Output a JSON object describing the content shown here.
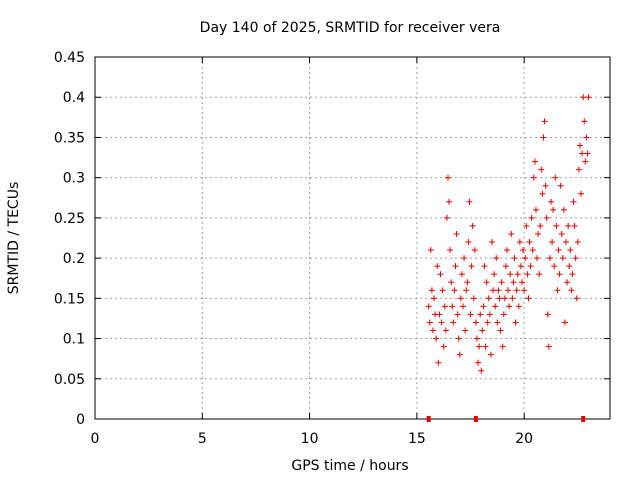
{
  "chart_data": {
    "type": "scatter",
    "title": "Day 140 of 2025, SRMTID for receiver vera",
    "xlabel": "GPS time / hours",
    "ylabel": "SRMTID / TECUs",
    "xlim": [
      0,
      24
    ],
    "ylim": [
      0,
      0.45
    ],
    "xticks": [
      0,
      5,
      10,
      15,
      20
    ],
    "yticks": [
      0,
      0.05,
      0.1,
      0.15,
      0.2,
      0.25,
      0.3,
      0.35,
      0.4,
      0.45
    ],
    "xtick_labels": [
      "0",
      "5",
      "10",
      "15",
      "20"
    ],
    "ytick_labels": [
      "0",
      "0.05",
      "0.1",
      "0.15",
      "0.2",
      "0.25",
      "0.3",
      "0.35",
      "0.4",
      "0.45"
    ],
    "grid": true,
    "marker": "+",
    "color": "#e00000",
    "zero_markers_x": [
      15.55,
      17.75,
      22.75
    ],
    "series": [
      {
        "name": "SRMTID",
        "points": [
          [
            15.55,
            0.14
          ],
          [
            15.6,
            0.12
          ],
          [
            15.65,
            0.21
          ],
          [
            15.7,
            0.16
          ],
          [
            15.75,
            0.11
          ],
          [
            15.8,
            0.15
          ],
          [
            15.85,
            0.13
          ],
          [
            15.9,
            0.1
          ],
          [
            15.95,
            0.19
          ],
          [
            16.0,
            0.07
          ],
          [
            16.05,
            0.13
          ],
          [
            16.1,
            0.18
          ],
          [
            16.15,
            0.12
          ],
          [
            16.2,
            0.16
          ],
          [
            16.25,
            0.09
          ],
          [
            16.3,
            0.14
          ],
          [
            16.35,
            0.11
          ],
          [
            16.4,
            0.25
          ],
          [
            16.45,
            0.3
          ],
          [
            16.5,
            0.27
          ],
          [
            16.55,
            0.21
          ],
          [
            16.6,
            0.17
          ],
          [
            16.65,
            0.14
          ],
          [
            16.7,
            0.12
          ],
          [
            16.75,
            0.16
          ],
          [
            16.8,
            0.19
          ],
          [
            16.85,
            0.23
          ],
          [
            16.9,
            0.13
          ],
          [
            16.95,
            0.1
          ],
          [
            17.0,
            0.08
          ],
          [
            17.05,
            0.15
          ],
          [
            17.1,
            0.18
          ],
          [
            17.15,
            0.14
          ],
          [
            17.2,
            0.2
          ],
          [
            17.25,
            0.11
          ],
          [
            17.3,
            0.16
          ],
          [
            17.35,
            0.17
          ],
          [
            17.4,
            0.22
          ],
          [
            17.45,
            0.27
          ],
          [
            17.5,
            0.13
          ],
          [
            17.55,
            0.19
          ],
          [
            17.6,
            0.24
          ],
          [
            17.65,
            0.15
          ],
          [
            17.7,
            0.21
          ],
          [
            17.75,
            0.12
          ],
          [
            17.8,
            0.1
          ],
          [
            17.85,
            0.07
          ],
          [
            17.9,
            0.09
          ],
          [
            17.95,
            0.13
          ],
          [
            18.0,
            0.06
          ],
          [
            18.05,
            0.11
          ],
          [
            18.1,
            0.14
          ],
          [
            18.15,
            0.19
          ],
          [
            18.2,
            0.09
          ],
          [
            18.25,
            0.17
          ],
          [
            18.3,
            0.12
          ],
          [
            18.35,
            0.15
          ],
          [
            18.4,
            0.13
          ],
          [
            18.45,
            0.08
          ],
          [
            18.5,
            0.22
          ],
          [
            18.55,
            0.16
          ],
          [
            18.6,
            0.18
          ],
          [
            18.65,
            0.14
          ],
          [
            18.7,
            0.2
          ],
          [
            18.75,
            0.12
          ],
          [
            18.8,
            0.16
          ],
          [
            18.85,
            0.15
          ],
          [
            18.9,
            0.11
          ],
          [
            18.95,
            0.17
          ],
          [
            19.0,
            0.09
          ],
          [
            19.05,
            0.13
          ],
          [
            19.1,
            0.15
          ],
          [
            19.15,
            0.19
          ],
          [
            19.2,
            0.21
          ],
          [
            19.25,
            0.16
          ],
          [
            19.3,
            0.14
          ],
          [
            19.35,
            0.18
          ],
          [
            19.4,
            0.23
          ],
          [
            19.45,
            0.15
          ],
          [
            19.5,
            0.17
          ],
          [
            19.55,
            0.2
          ],
          [
            19.6,
            0.12
          ],
          [
            19.65,
            0.16
          ],
          [
            19.7,
            0.18
          ],
          [
            19.75,
            0.14
          ],
          [
            19.8,
            0.22
          ],
          [
            19.85,
            0.19
          ],
          [
            19.9,
            0.17
          ],
          [
            19.95,
            0.21
          ],
          [
            20.0,
            0.16
          ],
          [
            20.05,
            0.2
          ],
          [
            20.1,
            0.24
          ],
          [
            20.15,
            0.18
          ],
          [
            20.2,
            0.15
          ],
          [
            20.25,
            0.22
          ],
          [
            20.3,
            0.19
          ],
          [
            20.35,
            0.25
          ],
          [
            20.4,
            0.21
          ],
          [
            20.45,
            0.3
          ],
          [
            20.5,
            0.32
          ],
          [
            20.55,
            0.26
          ],
          [
            20.6,
            0.2
          ],
          [
            20.65,
            0.23
          ],
          [
            20.7,
            0.18
          ],
          [
            20.75,
            0.24
          ],
          [
            20.8,
            0.31
          ],
          [
            20.85,
            0.28
          ],
          [
            20.9,
            0.35
          ],
          [
            20.95,
            0.37
          ],
          [
            21.0,
            0.29
          ],
          [
            21.05,
            0.25
          ],
          [
            21.1,
            0.13
          ],
          [
            21.15,
            0.09
          ],
          [
            21.2,
            0.2
          ],
          [
            21.25,
            0.27
          ],
          [
            21.3,
            0.22
          ],
          [
            21.35,
            0.26
          ],
          [
            21.4,
            0.19
          ],
          [
            21.45,
            0.3
          ],
          [
            21.5,
            0.24
          ],
          [
            21.55,
            0.16
          ],
          [
            21.6,
            0.21
          ],
          [
            21.65,
            0.18
          ],
          [
            21.7,
            0.29
          ],
          [
            21.75,
            0.23
          ],
          [
            21.8,
            0.2
          ],
          [
            21.85,
            0.26
          ],
          [
            21.9,
            0.12
          ],
          [
            21.95,
            0.22
          ],
          [
            22.0,
            0.17
          ],
          [
            22.05,
            0.24
          ],
          [
            22.1,
            0.19
          ],
          [
            22.15,
            0.21
          ],
          [
            22.2,
            0.16
          ],
          [
            22.25,
            0.18
          ],
          [
            22.3,
            0.27
          ],
          [
            22.35,
            0.24
          ],
          [
            22.4,
            0.2
          ],
          [
            22.45,
            0.15
          ],
          [
            22.5,
            0.22
          ],
          [
            22.55,
            0.31
          ],
          [
            22.6,
            0.34
          ],
          [
            22.65,
            0.28
          ],
          [
            22.7,
            0.33
          ],
          [
            22.75,
            0.4
          ],
          [
            22.8,
            0.37
          ],
          [
            22.85,
            0.32
          ],
          [
            22.9,
            0.35
          ],
          [
            22.95,
            0.33
          ],
          [
            23.0,
            0.4
          ]
        ]
      }
    ]
  }
}
